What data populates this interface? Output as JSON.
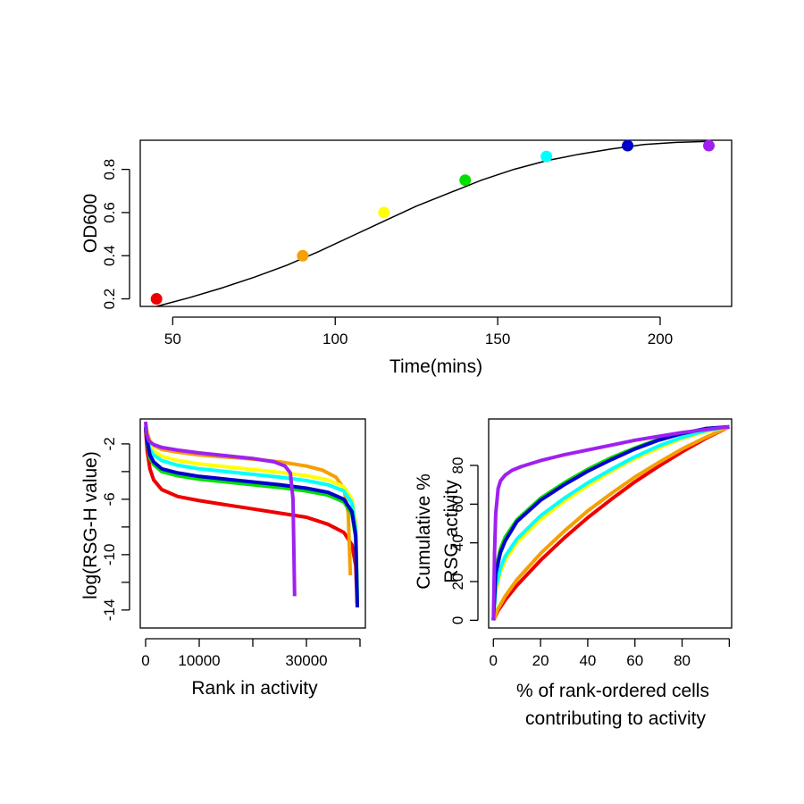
{
  "chart_data": [
    {
      "id": "growth",
      "type": "scatter",
      "xlabel": "Time(mins)",
      "ylabel": "OD600",
      "xlim": [
        40,
        222
      ],
      "ylim": [
        0.165,
        0.935
      ],
      "xticks": [
        50,
        100,
        150,
        200
      ],
      "yticks": [
        0.2,
        0.4,
        0.6,
        0.8
      ],
      "points": [
        {
          "x": 45,
          "y": 0.2,
          "color": "#ee0000"
        },
        {
          "x": 90,
          "y": 0.4,
          "color": "#f5a000"
        },
        {
          "x": 115,
          "y": 0.6,
          "color": "#ffff00"
        },
        {
          "x": 140,
          "y": 0.75,
          "color": "#00e000"
        },
        {
          "x": 165,
          "y": 0.86,
          "color": "#00ffff"
        },
        {
          "x": 190,
          "y": 0.91,
          "color": "#0000cc"
        },
        {
          "x": 215,
          "y": 0.91,
          "color": "#a020f0"
        }
      ],
      "fit_line": {
        "color": "#000000",
        "x": [
          45,
          55,
          65,
          75,
          85,
          95,
          105,
          115,
          125,
          135,
          145,
          155,
          165,
          175,
          185,
          195,
          205,
          215
        ],
        "y": [
          0.165,
          0.205,
          0.25,
          0.3,
          0.355,
          0.42,
          0.49,
          0.56,
          0.63,
          0.69,
          0.75,
          0.8,
          0.84,
          0.87,
          0.895,
          0.915,
          0.925,
          0.93
        ]
      }
    },
    {
      "id": "rank",
      "type": "line",
      "xlabel": "Rank in activity",
      "ylabel": "log(RSG-H value)",
      "xlim": [
        -1000,
        41000
      ],
      "ylim": [
        -15.3,
        -0.2
      ],
      "xticks": [
        0,
        10000,
        20000,
        30000,
        40000
      ],
      "xticklabels": [
        "0",
        "10000",
        "",
        "30000",
        ""
      ],
      "yticks": [
        -14,
        -12,
        -10,
        -8,
        -6,
        -4,
        -2
      ],
      "yticklabels": [
        "-14",
        "",
        "-10",
        "",
        "-6",
        "",
        "-2"
      ],
      "series": [
        {
          "color": "#ee0000",
          "x": [
            0,
            300,
            800,
            1500,
            3000,
            6000,
            10000,
            15000,
            20000,
            25000,
            30000,
            34000,
            37000,
            38500,
            39200,
            39500
          ],
          "y": [
            -1,
            -2.5,
            -3.8,
            -4.6,
            -5.3,
            -5.8,
            -6.1,
            -6.4,
            -6.7,
            -7.0,
            -7.3,
            -7.8,
            -8.4,
            -9.3,
            -10.8,
            -13.8
          ]
        },
        {
          "color": "#f5a000",
          "x": [
            0,
            300,
            800,
            1500,
            3000,
            6000,
            10000,
            15000,
            20000,
            25000,
            30000,
            33000,
            35500,
            37000,
            37800,
            38200
          ],
          "y": [
            -0.5,
            -1.2,
            -1.8,
            -2.1,
            -2.4,
            -2.6,
            -2.8,
            -2.95,
            -3.1,
            -3.3,
            -3.6,
            -3.9,
            -4.4,
            -5.2,
            -7.0,
            -11.5
          ]
        },
        {
          "color": "#ffff00",
          "x": [
            0,
            300,
            800,
            1500,
            3000,
            6000,
            10000,
            15000,
            20000,
            25000,
            30000,
            34000,
            37000,
            38500,
            39200,
            39500
          ],
          "y": [
            -0.6,
            -1.4,
            -2.1,
            -2.5,
            -2.9,
            -3.2,
            -3.45,
            -3.65,
            -3.85,
            -4.05,
            -4.3,
            -4.6,
            -5.1,
            -6.0,
            -7.8,
            -12.5
          ]
        },
        {
          "color": "#00ffff",
          "x": [
            0,
            300,
            800,
            1500,
            3000,
            6000,
            10000,
            15000,
            20000,
            25000,
            30000,
            34000,
            37000,
            38500,
            39200,
            39500
          ],
          "y": [
            -0.7,
            -1.6,
            -2.4,
            -2.8,
            -3.2,
            -3.55,
            -3.8,
            -4.0,
            -4.2,
            -4.4,
            -4.65,
            -4.95,
            -5.4,
            -6.3,
            -8.2,
            -13.0
          ]
        },
        {
          "color": "#00e000",
          "x": [
            0,
            300,
            800,
            1500,
            3000,
            6000,
            10000,
            15000,
            20000,
            25000,
            30000,
            34000,
            37000,
            38500,
            39200,
            39500
          ],
          "y": [
            -0.8,
            -1.9,
            -3.0,
            -3.5,
            -4.0,
            -4.3,
            -4.55,
            -4.75,
            -4.95,
            -5.15,
            -5.4,
            -5.7,
            -6.2,
            -7.1,
            -8.8,
            -13.5
          ]
        },
        {
          "color": "#0000cc",
          "x": [
            0,
            300,
            800,
            1500,
            3000,
            6000,
            10000,
            15000,
            20000,
            25000,
            30000,
            34000,
            37000,
            38500,
            39200,
            39500
          ],
          "y": [
            -0.8,
            -1.8,
            -2.8,
            -3.3,
            -3.8,
            -4.1,
            -4.35,
            -4.55,
            -4.75,
            -4.95,
            -5.2,
            -5.5,
            -6.0,
            -6.9,
            -8.6,
            -13.8
          ]
        },
        {
          "color": "#a020f0",
          "x": [
            0,
            200,
            600,
            1500,
            3000,
            6000,
            10000,
            15000,
            20000,
            24000,
            26000,
            27000,
            27500,
            27800
          ],
          "y": [
            -0.4,
            -1.3,
            -1.8,
            -2.05,
            -2.25,
            -2.45,
            -2.65,
            -2.85,
            -3.05,
            -3.3,
            -3.6,
            -4.1,
            -6.0,
            -13.0
          ]
        }
      ]
    },
    {
      "id": "cumulative",
      "type": "line",
      "xlabel": "% of rank-ordered cells",
      "xlabel_line2": "contributing to activity",
      "ylabel": "Cumulative %",
      "ylabel_line2": "RSG activity",
      "xlim": [
        -2,
        101
      ],
      "ylim": [
        -4,
        104
      ],
      "xticks": [
        0,
        20,
        40,
        60,
        80,
        100
      ],
      "xticklabels": [
        "0",
        "20",
        "40",
        "60",
        "80",
        ""
      ],
      "yticks": [
        0,
        20,
        40,
        60,
        80
      ],
      "series": [
        {
          "color": "#ee0000",
          "x": [
            0,
            2,
            5,
            10,
            20,
            30,
            40,
            50,
            60,
            70,
            80,
            90,
            100
          ],
          "y": [
            0,
            5,
            10.5,
            18,
            31,
            42.5,
            53,
            62.5,
            71.5,
            79.5,
            87,
            94,
            100
          ]
        },
        {
          "color": "#f5a000",
          "x": [
            0,
            2,
            5,
            10,
            20,
            30,
            40,
            50,
            60,
            70,
            80,
            90,
            100
          ],
          "y": [
            0,
            6,
            12.5,
            21,
            34.5,
            46,
            56.5,
            65.5,
            74,
            81.5,
            88.5,
            94.5,
            100
          ]
        },
        {
          "color": "#ffff00",
          "x": [
            0,
            1,
            3,
            5,
            10,
            20,
            30,
            40,
            50,
            60,
            70,
            80,
            90,
            100
          ],
          "y": [
            0,
            15,
            25,
            31,
            40,
            52,
            61.5,
            69.5,
            77,
            83.5,
            89,
            94,
            97.5,
            100
          ]
        },
        {
          "color": "#00ffff",
          "x": [
            0,
            1,
            3,
            5,
            10,
            20,
            30,
            40,
            50,
            60,
            70,
            80,
            90,
            100
          ],
          "y": [
            0,
            17,
            27,
            33,
            42,
            54,
            63,
            71,
            78,
            84.5,
            90,
            94.5,
            98,
            100
          ]
        },
        {
          "color": "#00e000",
          "x": [
            0,
            1,
            3,
            5,
            10,
            20,
            30,
            40,
            50,
            60,
            70,
            80,
            90,
            100
          ],
          "y": [
            0,
            26,
            37,
            43,
            52,
            63,
            71,
            78,
            84,
            89,
            93.5,
            96.5,
            99,
            100
          ]
        },
        {
          "color": "#0000cc",
          "x": [
            0,
            1,
            3,
            5,
            10,
            20,
            30,
            40,
            50,
            60,
            70,
            80,
            90,
            100
          ],
          "y": [
            0,
            24,
            35,
            41,
            51,
            62,
            70,
            77,
            83,
            88.5,
            93,
            96.5,
            99,
            100
          ]
        },
        {
          "color": "#a020f0",
          "x": [
            0,
            0.5,
            1,
            2,
            3,
            5,
            8,
            12,
            20,
            30,
            40,
            50,
            60,
            70,
            80,
            90,
            100
          ],
          "y": [
            0,
            35,
            55,
            68,
            72,
            75,
            77.5,
            79.5,
            82.5,
            85.5,
            88,
            90.5,
            93,
            95,
            97,
            98.5,
            100
          ]
        }
      ]
    }
  ]
}
